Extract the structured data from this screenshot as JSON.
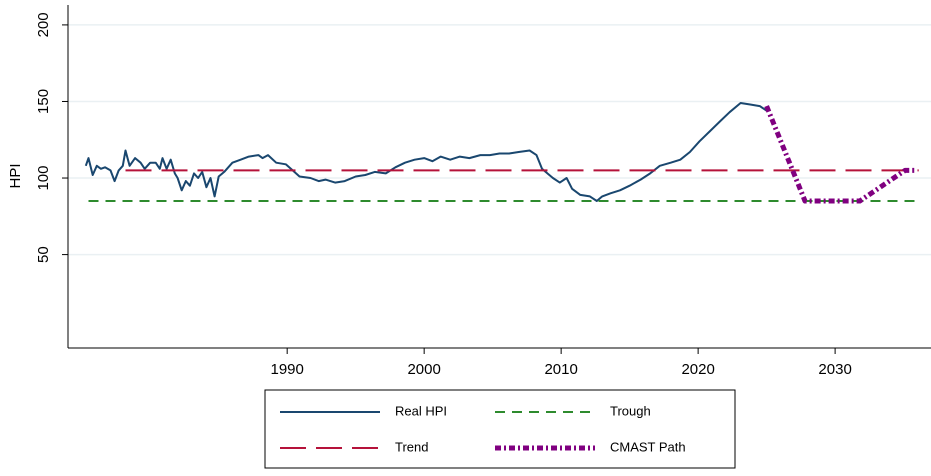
{
  "chart_data": {
    "type": "line",
    "ylabel": "HPI",
    "xlim": [
      1974,
      2037
    ],
    "ylim": [
      -11,
      213
    ],
    "xticks": [
      1990,
      2000,
      2010,
      2020,
      2030
    ],
    "yticks": [
      50,
      100,
      150,
      200
    ],
    "grid": true,
    "legend": "bottom",
    "series": [
      {
        "name": "Real HPI",
        "color": "#1a476f",
        "x": [
          1975.3,
          1975.5,
          1975.8,
          1976.1,
          1976.4,
          1976.7,
          1977.1,
          1977.4,
          1977.7,
          1978.0,
          1978.2,
          1978.5,
          1978.9,
          1979.3,
          1979.6,
          1980.0,
          1980.4,
          1980.7,
          1980.9,
          1981.2,
          1981.5,
          1981.8,
          1982.0,
          1982.3,
          1982.6,
          1982.9,
          1983.2,
          1983.5,
          1983.8,
          1984.1,
          1984.4,
          1984.7,
          1985.0,
          1985.4,
          1986.0,
          1986.6,
          1987.2,
          1987.9,
          1988.2,
          1988.6,
          1989.2,
          1989.9,
          1990.4,
          1990.9,
          1991.7,
          1992.3,
          1992.8,
          1993.5,
          1994.2,
          1995.0,
          1995.7,
          1996.4,
          1997.2,
          1997.9,
          1998.6,
          1999.3,
          2000.0,
          2000.6,
          2001.2,
          2001.9,
          2002.6,
          2003.3,
          2004.1,
          2004.8,
          2005.5,
          2006.2,
          2006.9,
          2007.7,
          2008.2,
          2008.6,
          2009.0,
          2009.4,
          2009.9,
          2010.4,
          2010.8,
          2011.4,
          2012.1,
          2012.6,
          2013.0,
          2013.6,
          2014.3,
          2015.0,
          2015.8,
          2016.5,
          2017.2,
          2018.0,
          2018.7,
          2019.4,
          2020.1,
          2020.9,
          2021.6,
          2022.3,
          2023.1,
          2023.8,
          2024.5,
          2025.0
        ],
        "values": [
          108,
          113,
          102,
          108,
          106,
          107,
          105,
          98,
          105,
          108,
          118,
          108,
          113,
          110,
          106,
          110,
          110,
          106,
          113,
          106,
          112,
          103,
          100,
          92,
          98,
          95,
          103,
          100,
          104,
          94,
          100,
          88,
          101,
          104,
          110,
          112,
          114,
          115,
          113,
          115,
          110,
          109,
          105,
          101,
          100,
          98,
          99,
          97,
          98,
          101,
          102,
          104,
          103,
          107,
          110,
          112,
          113,
          111,
          114,
          112,
          114,
          113,
          115,
          115,
          116,
          116,
          117,
          118,
          115,
          106,
          103,
          100,
          97,
          100,
          93,
          89,
          88,
          85,
          88,
          90,
          92,
          95,
          99,
          103,
          108,
          110,
          112,
          117,
          124,
          131,
          137,
          143,
          149,
          148,
          147,
          144
        ]
      },
      {
        "name": "Trough",
        "color": "#2e8b2e",
        "x": [
          1975.5,
          2036.1
        ],
        "values": [
          85,
          85
        ]
      },
      {
        "name": "Trend",
        "color": "#b5123a",
        "x": [
          1978.2,
          2036.1
        ],
        "values": [
          105,
          105
        ]
      },
      {
        "name": "CMAST Path",
        "color": "#800080",
        "x": [
          2025.0,
          2027.8,
          2031.8,
          2035.1,
          2035.8
        ],
        "values": [
          147,
          85,
          85,
          105,
          105
        ]
      }
    ]
  }
}
